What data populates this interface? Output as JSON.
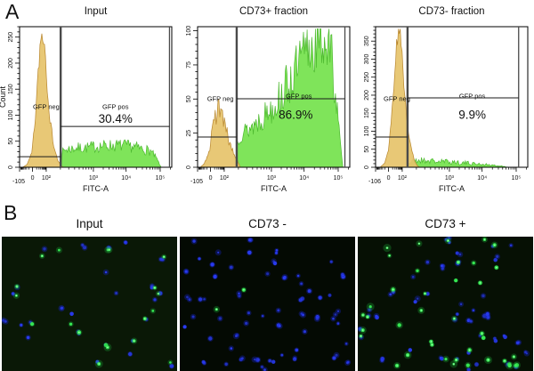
{
  "figure": {
    "panel_a_label": "A",
    "panel_b_label": "B"
  },
  "chart_data": [
    {
      "type": "area",
      "subtype": "flow-cytometry-histogram",
      "title": "Input",
      "xlabel": "FITC-A",
      "ylabel": "Count",
      "x_axis": {
        "scale": "biexponential",
        "tick_labels": [
          "-105",
          "0",
          "10²",
          "10³",
          "10⁴",
          "10⁵"
        ],
        "tick_pos": [
          0.0,
          0.085,
          0.175,
          0.485,
          0.7,
          0.924
        ]
      },
      "y_axis": {
        "ticks": [
          0,
          50,
          100,
          150,
          200,
          250
        ],
        "max": 270,
        "grid": false
      },
      "gate": {
        "neg_label": "GFP neg",
        "pos_label": "GFP pos",
        "percent": "30.4%",
        "divider_x": 0.27,
        "right_x": 0.985,
        "pos_line_y": 0.71,
        "neg_line_y": 0.925,
        "neg_label_pos": [
          0.175,
          0.585
        ],
        "pos_label_pos": [
          0.63,
          0.585
        ],
        "percent_pos": [
          0.63,
          0.685
        ]
      },
      "seed": 7,
      "series": [
        {
          "name": "GFP pos",
          "fill": "#74e24c",
          "stroke": "#4db92f",
          "jitter": 0.3,
          "points": [
            [
              0.272,
              0
            ],
            [
              0.278,
              0.1
            ],
            [
              0.3,
              0.125
            ],
            [
              0.36,
              0.135
            ],
            [
              0.44,
              0.14
            ],
            [
              0.52,
              0.15
            ],
            [
              0.6,
              0.155
            ],
            [
              0.68,
              0.155
            ],
            [
              0.75,
              0.145
            ],
            [
              0.81,
              0.13
            ],
            [
              0.86,
              0.115
            ],
            [
              0.895,
              0.07
            ],
            [
              0.92,
              0.02
            ],
            [
              0.93,
              0
            ]
          ]
        },
        {
          "name": "GFP neg",
          "fill": "#e6c36a",
          "stroke": "#b8862e",
          "jitter": 0.1,
          "points": [
            [
              0.02,
              0
            ],
            [
              0.05,
              0.02
            ],
            [
              0.08,
              0.1
            ],
            [
              0.1,
              0.3
            ],
            [
              0.12,
              0.62
            ],
            [
              0.135,
              0.88
            ],
            [
              0.15,
              0.97
            ],
            [
              0.165,
              0.88
            ],
            [
              0.18,
              0.62
            ],
            [
              0.2,
              0.34
            ],
            [
              0.225,
              0.15
            ],
            [
              0.25,
              0.05
            ],
            [
              0.27,
              0.015
            ],
            [
              0.285,
              0
            ]
          ]
        }
      ]
    },
    {
      "type": "area",
      "subtype": "flow-cytometry-histogram",
      "title": "CD73+ fraction",
      "xlabel": "FITC-A",
      "ylabel": "",
      "x_axis": {
        "scale": "biexponential",
        "tick_labels": [
          "-105",
          "0",
          "10²",
          "10³",
          "10⁴",
          "10⁵"
        ],
        "tick_pos": [
          0.0,
          0.085,
          0.175,
          0.485,
          0.7,
          0.924
        ]
      },
      "y_axis": {
        "ticks": [
          0,
          25,
          50,
          75,
          100
        ],
        "max": 103,
        "grid": false
      },
      "gate": {
        "neg_label": "GFP neg",
        "pos_label": "GFP pos",
        "percent": "86.9%",
        "divider_x": 0.257,
        "right_x": 0.968,
        "pos_line_y": 0.513,
        "neg_line_y": 0.785,
        "neg_label_pos": [
          0.15,
          0.53
        ],
        "pos_label_pos": [
          0.665,
          0.508
        ],
        "percent_pos": [
          0.645,
          0.655
        ]
      },
      "seed": 13,
      "series": [
        {
          "name": "GFP pos",
          "fill": "#74e24c",
          "stroke": "#4db92f",
          "jitter": 0.28,
          "points": [
            [
              0.258,
              0.18
            ],
            [
              0.28,
              0.24
            ],
            [
              0.32,
              0.26
            ],
            [
              0.36,
              0.29
            ],
            [
              0.4,
              0.33
            ],
            [
              0.44,
              0.37
            ],
            [
              0.48,
              0.42
            ],
            [
              0.52,
              0.47
            ],
            [
              0.56,
              0.53
            ],
            [
              0.6,
              0.6
            ],
            [
              0.64,
              0.67
            ],
            [
              0.68,
              0.75
            ],
            [
              0.72,
              0.82
            ],
            [
              0.76,
              0.88
            ],
            [
              0.8,
              0.92
            ],
            [
              0.835,
              0.93
            ],
            [
              0.865,
              0.86
            ],
            [
              0.89,
              0.7
            ],
            [
              0.91,
              0.48
            ],
            [
              0.93,
              0.25
            ],
            [
              0.945,
              0.08
            ],
            [
              0.955,
              0
            ]
          ]
        },
        {
          "name": "GFP neg",
          "fill": "#e6c36a",
          "stroke": "#b8862e",
          "jitter": 0.22,
          "points": [
            [
              0.02,
              0
            ],
            [
              0.05,
              0.04
            ],
            [
              0.08,
              0.14
            ],
            [
              0.1,
              0.26
            ],
            [
              0.12,
              0.38
            ],
            [
              0.135,
              0.44
            ],
            [
              0.15,
              0.42
            ],
            [
              0.165,
              0.36
            ],
            [
              0.185,
              0.27
            ],
            [
              0.21,
              0.17
            ],
            [
              0.24,
              0.09
            ],
            [
              0.265,
              0.04
            ],
            [
              0.28,
              0
            ]
          ]
        }
      ]
    },
    {
      "type": "area",
      "subtype": "flow-cytometry-histogram",
      "title": "CD73- fraction",
      "xlabel": "FITC-A",
      "ylabel": "",
      "x_axis": {
        "scale": "biexponential",
        "tick_labels": [
          "-106",
          "0",
          "10²",
          "10³",
          "10⁴",
          "10⁵"
        ],
        "tick_pos": [
          0.0,
          0.085,
          0.175,
          0.485,
          0.7,
          0.924
        ]
      },
      "y_axis": {
        "ticks": [
          0,
          50,
          100,
          150,
          200,
          250,
          300,
          350
        ],
        "max": 390,
        "grid": false
      },
      "gate": {
        "neg_label": "GFP neg",
        "pos_label": "GFP pos",
        "percent": "9.9%",
        "divider_x": 0.21,
        "right_x": 0.94,
        "pos_line_y": 0.506,
        "neg_line_y": 0.785,
        "neg_label_pos": [
          0.14,
          0.53
        ],
        "pos_label_pos": [
          0.635,
          0.508
        ],
        "percent_pos": [
          0.635,
          0.655
        ]
      },
      "seed": 21,
      "series": [
        {
          "name": "GFP pos",
          "fill": "#74e24c",
          "stroke": "#4db92f",
          "jitter": 0.5,
          "points": [
            [
              0.212,
              0
            ],
            [
              0.218,
              0.03
            ],
            [
              0.25,
              0.045
            ],
            [
              0.3,
              0.05
            ],
            [
              0.36,
              0.045
            ],
            [
              0.42,
              0.04
            ],
            [
              0.48,
              0.04
            ],
            [
              0.54,
              0.035
            ],
            [
              0.6,
              0.03
            ],
            [
              0.66,
              0.025
            ],
            [
              0.72,
              0.02
            ],
            [
              0.78,
              0.012
            ],
            [
              0.83,
              0.008
            ],
            [
              0.87,
              0
            ]
          ]
        },
        {
          "name": "GFP neg",
          "fill": "#e6c36a",
          "stroke": "#b8862e",
          "jitter": 0.08,
          "points": [
            [
              0.03,
              0
            ],
            [
              0.06,
              0.03
            ],
            [
              0.085,
              0.12
            ],
            [
              0.105,
              0.35
            ],
            [
              0.125,
              0.68
            ],
            [
              0.14,
              0.92
            ],
            [
              0.155,
              0.97
            ],
            [
              0.17,
              0.88
            ],
            [
              0.185,
              0.62
            ],
            [
              0.205,
              0.35
            ],
            [
              0.23,
              0.15
            ],
            [
              0.255,
              0.05
            ],
            [
              0.275,
              0.01
            ],
            [
              0.29,
              0
            ]
          ]
        }
      ]
    }
  ],
  "panel_b": {
    "images": [
      {
        "label": "Input",
        "bg": "#0a1806",
        "blue_cells": 26,
        "green_cells": 19,
        "seed": 101
      },
      {
        "label": "CD73 -",
        "bg": "#040a03",
        "blue_cells": 56,
        "green_cells": 2,
        "seed": 202
      },
      {
        "label": "CD73 +",
        "bg": "#061004",
        "blue_cells": 46,
        "green_cells": 40,
        "seed": 303
      }
    ],
    "colors": {
      "blue": "#2a3cf2",
      "blue_glow": "#1726c8",
      "green": "#38ef55",
      "green_core": "#c9ffd2",
      "green_glow": "#1fae3c"
    }
  }
}
